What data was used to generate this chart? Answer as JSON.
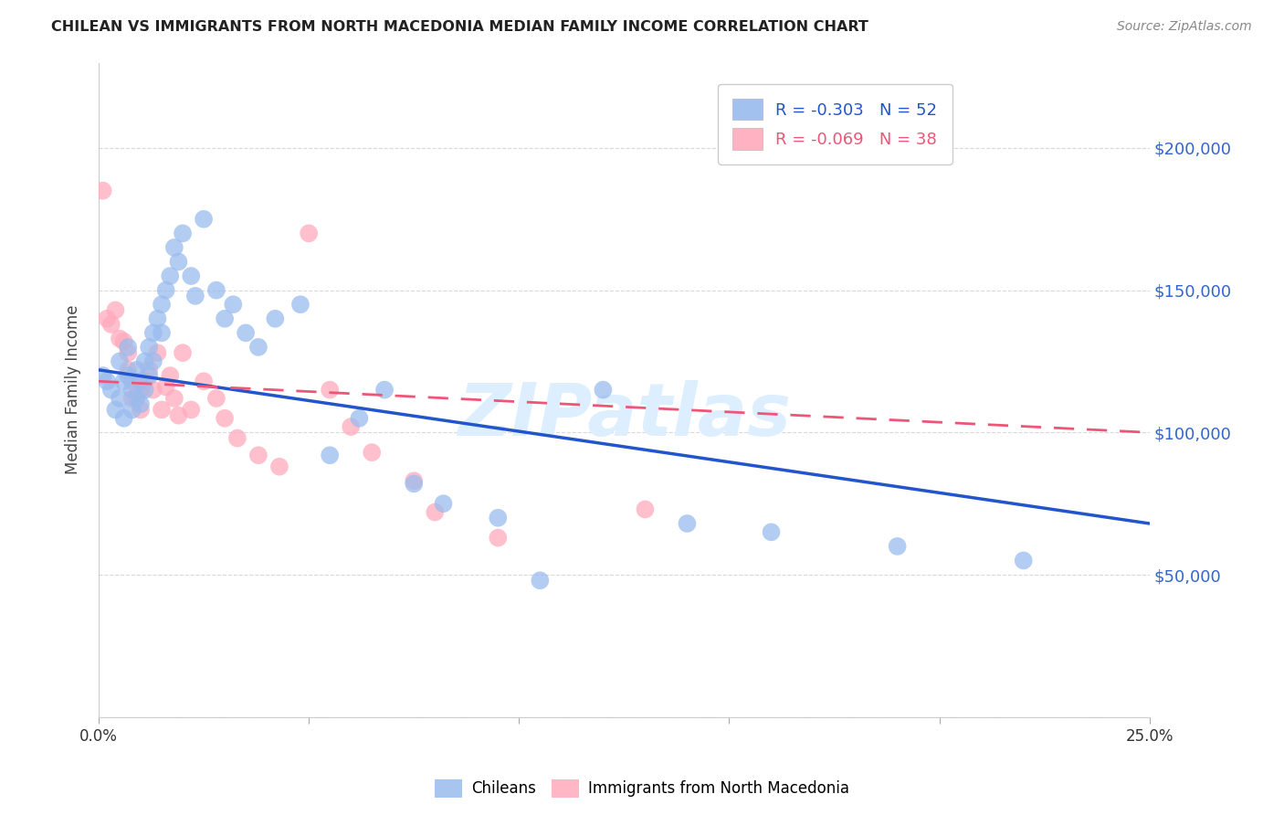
{
  "title": "CHILEAN VS IMMIGRANTS FROM NORTH MACEDONIA MEDIAN FAMILY INCOME CORRELATION CHART",
  "source": "Source: ZipAtlas.com",
  "ylabel": "Median Family Income",
  "xlim": [
    0,
    0.25
  ],
  "ylim": [
    0,
    230000
  ],
  "yticks": [
    0,
    50000,
    100000,
    150000,
    200000
  ],
  "ytick_labels": [
    "",
    "$50,000",
    "$100,000",
    "$150,000",
    "$200,000"
  ],
  "xticks": [
    0.0,
    0.05,
    0.1,
    0.15,
    0.2,
    0.25
  ],
  "xtick_labels": [
    "0.0%",
    "",
    "",
    "",
    "",
    "25.0%"
  ],
  "grid_color": "#d0d0d0",
  "background_color": "#ffffff",
  "blue_R": -0.303,
  "blue_N": 52,
  "pink_R": -0.069,
  "pink_N": 38,
  "blue_color": "#99bbee",
  "pink_color": "#ffaabb",
  "line_blue": "#2255cc",
  "line_pink": "#ee5577",
  "watermark": "ZIPatlas",
  "watermark_color": "#ddeeff",
  "watermark_fontsize": 58,
  "legend_label_blue": "Chileans",
  "legend_label_pink": "Immigrants from North Macedonia",
  "blue_line_x": [
    0.0,
    0.25
  ],
  "blue_line_y": [
    122000,
    68000
  ],
  "pink_line_x": [
    0.0,
    0.25
  ],
  "pink_line_y": [
    118000,
    100000
  ],
  "blue_x": [
    0.001,
    0.002,
    0.003,
    0.004,
    0.005,
    0.005,
    0.006,
    0.006,
    0.007,
    0.007,
    0.008,
    0.008,
    0.009,
    0.009,
    0.01,
    0.01,
    0.011,
    0.011,
    0.012,
    0.012,
    0.013,
    0.013,
    0.014,
    0.015,
    0.015,
    0.016,
    0.017,
    0.018,
    0.019,
    0.02,
    0.022,
    0.023,
    0.025,
    0.028,
    0.03,
    0.032,
    0.035,
    0.038,
    0.042,
    0.048,
    0.055,
    0.062,
    0.068,
    0.075,
    0.082,
    0.095,
    0.105,
    0.12,
    0.14,
    0.16,
    0.19,
    0.22
  ],
  "blue_y": [
    120000,
    118000,
    115000,
    108000,
    125000,
    112000,
    118000,
    105000,
    130000,
    120000,
    115000,
    108000,
    122000,
    112000,
    118000,
    110000,
    125000,
    115000,
    130000,
    120000,
    135000,
    125000,
    140000,
    145000,
    135000,
    150000,
    155000,
    165000,
    160000,
    170000,
    155000,
    148000,
    175000,
    150000,
    140000,
    145000,
    135000,
    130000,
    140000,
    145000,
    92000,
    105000,
    115000,
    82000,
    75000,
    70000,
    48000,
    115000,
    68000,
    65000,
    60000,
    55000
  ],
  "pink_x": [
    0.001,
    0.002,
    0.003,
    0.004,
    0.005,
    0.006,
    0.007,
    0.007,
    0.008,
    0.008,
    0.009,
    0.01,
    0.01,
    0.011,
    0.012,
    0.013,
    0.014,
    0.015,
    0.016,
    0.017,
    0.018,
    0.019,
    0.02,
    0.022,
    0.025,
    0.028,
    0.03,
    0.033,
    0.038,
    0.043,
    0.05,
    0.055,
    0.06,
    0.065,
    0.075,
    0.08,
    0.095,
    0.13
  ],
  "pink_y": [
    185000,
    140000,
    138000,
    143000,
    133000,
    132000,
    128000,
    122000,
    118000,
    112000,
    113000,
    115000,
    108000,
    118000,
    122000,
    115000,
    128000,
    108000,
    116000,
    120000,
    112000,
    106000,
    128000,
    108000,
    118000,
    112000,
    105000,
    98000,
    92000,
    88000,
    170000,
    115000,
    102000,
    93000,
    83000,
    72000,
    63000,
    73000
  ]
}
